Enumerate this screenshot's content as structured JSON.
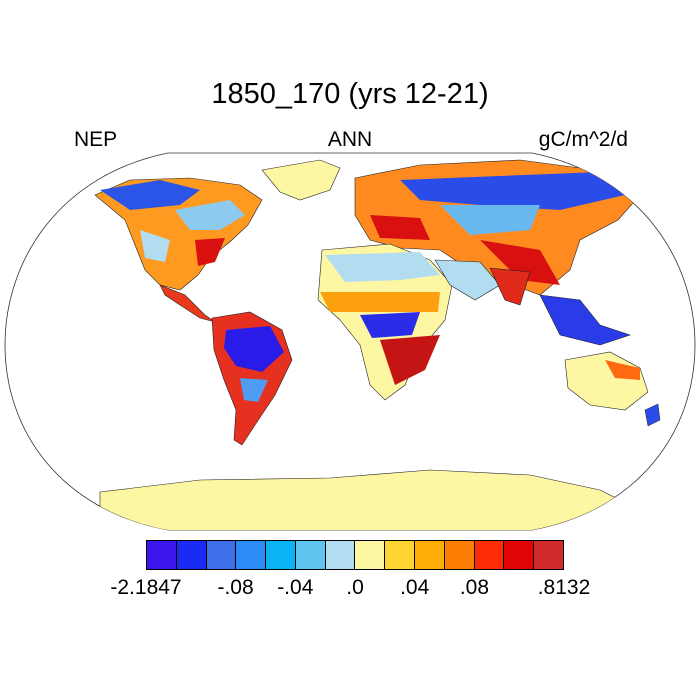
{
  "title": "1850_170 (yrs 12-21)",
  "variable_label": "NEP",
  "period_label": "ANN",
  "units_label": "gC/m^2/d",
  "colorbar": {
    "colors": [
      "#3c14ec",
      "#1a2cf2",
      "#3e6fe8",
      "#2b8cf5",
      "#0ab4f5",
      "#5fc4f0",
      "#b2dcf0",
      "#fdf6a2",
      "#fed530",
      "#fdad05",
      "#fd7e05",
      "#fd2c05",
      "#e20404",
      "#d02a2a"
    ],
    "labels": [
      {
        "text": "-2.1847",
        "boundary": 0
      },
      {
        "text": "-.08",
        "boundary": 3
      },
      {
        "text": "-.04",
        "boundary": 5
      },
      {
        "text": ".0",
        "boundary": 7
      },
      {
        "text": ".04",
        "boundary": 9
      },
      {
        "text": ".08",
        "boundary": 11
      },
      {
        "text": ".8132",
        "boundary": 14
      }
    ]
  }
}
